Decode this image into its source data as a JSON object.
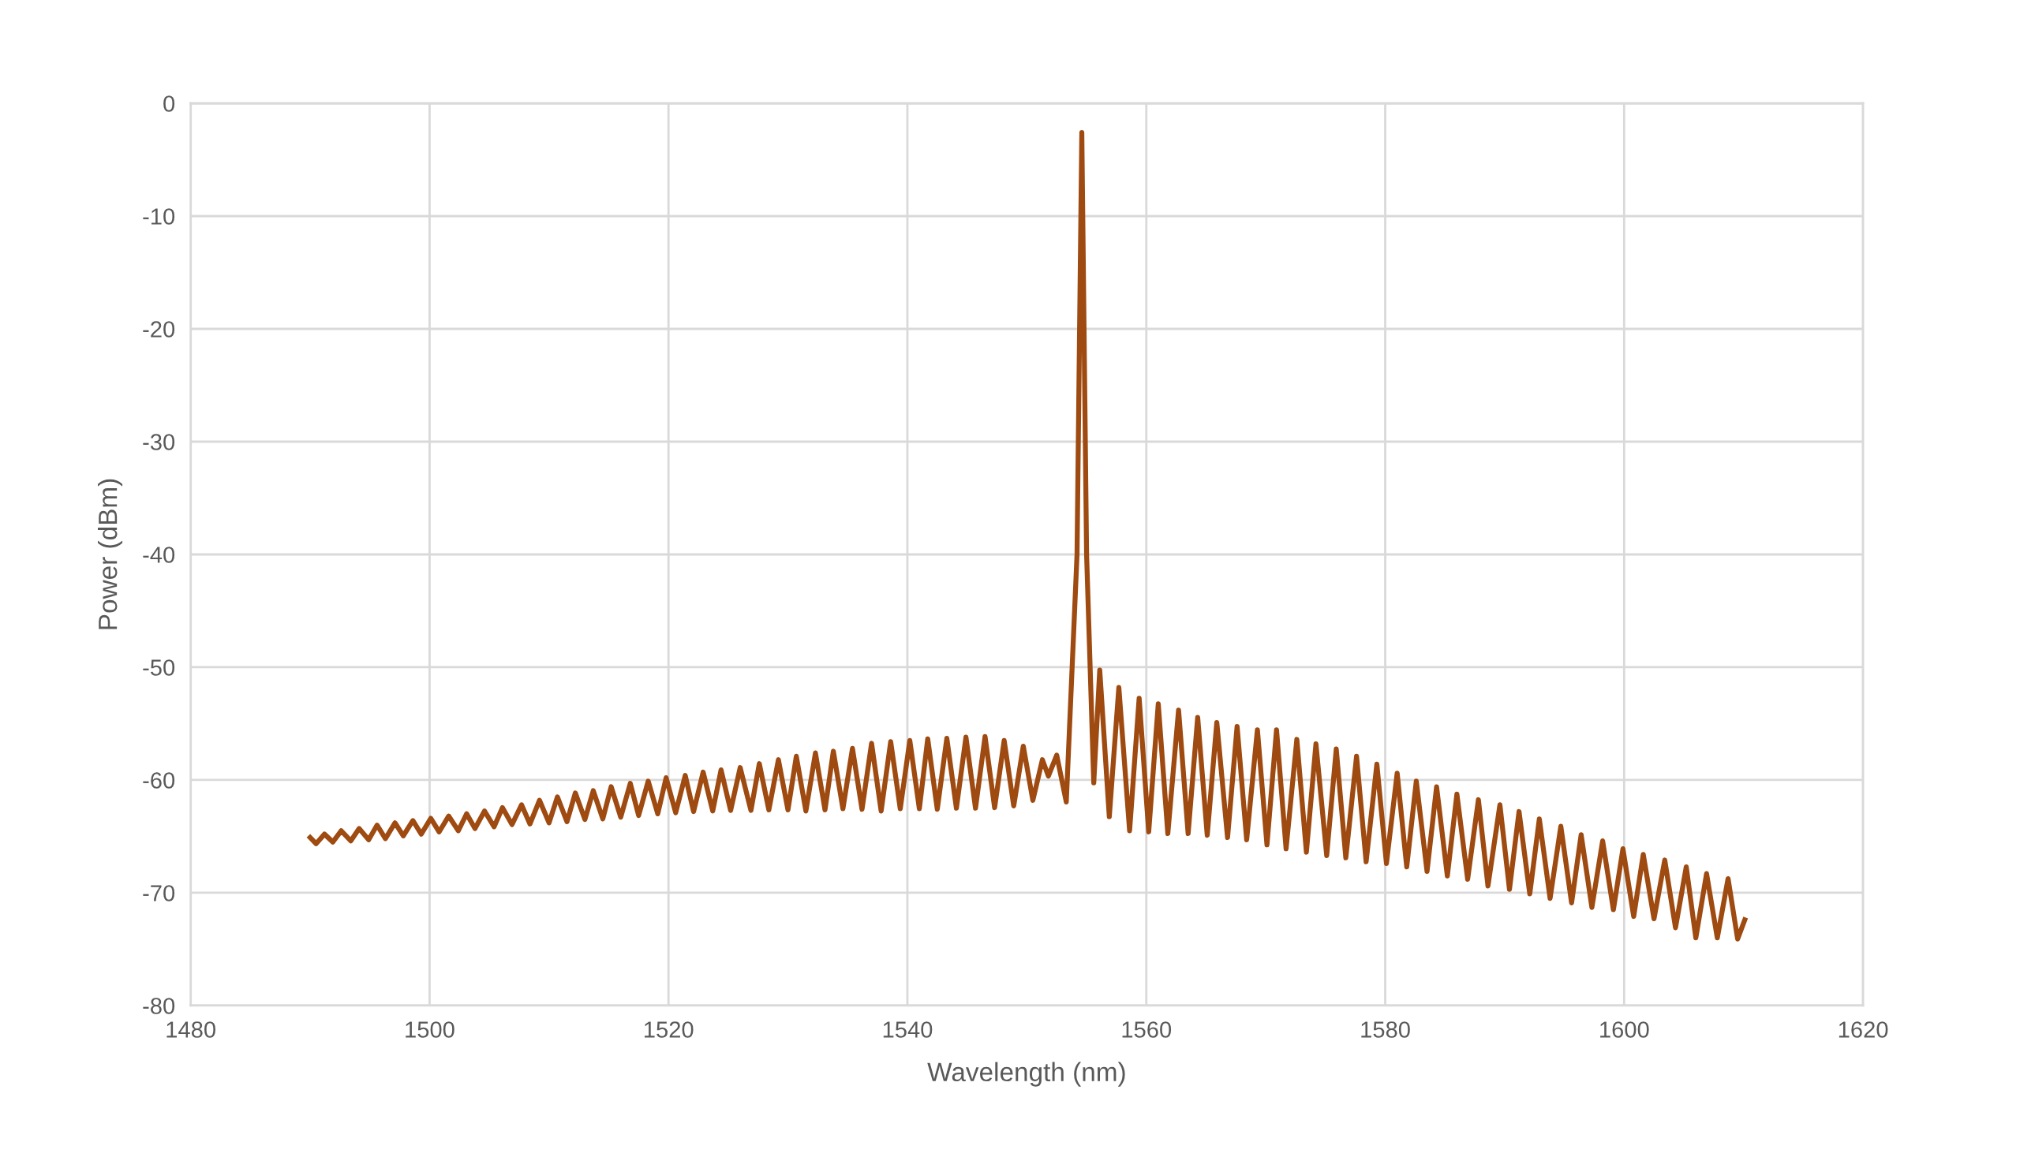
{
  "chart_data": {
    "type": "line",
    "xlabel": "Wavelength (nm)",
    "ylabel": "Power (dBm)",
    "xlim": [
      1480,
      1620
    ],
    "xticks": [
      1480,
      1500,
      1520,
      1540,
      1560,
      1580,
      1600,
      1620
    ],
    "ylim": [
      -80,
      0
    ],
    "yticks": [
      -80,
      -70,
      -60,
      -50,
      -40,
      -30,
      -20,
      -10,
      0
    ],
    "grid": true,
    "legend": false,
    "marker": "none",
    "line_style": "solid",
    "series": [
      {
        "color": "#9e4a10",
        "x": [
          1490.0,
          1490.5,
          1491.2,
          1491.9,
          1492.6,
          1493.4,
          1494.1,
          1494.9,
          1495.6,
          1496.3,
          1497.1,
          1497.8,
          1498.6,
          1499.3,
          1500.1,
          1500.8,
          1501.6,
          1502.4,
          1503.1,
          1503.8,
          1504.6,
          1505.4,
          1506.1,
          1506.9,
          1507.7,
          1508.4,
          1509.2,
          1510.0,
          1510.7,
          1511.5,
          1512.2,
          1513.0,
          1513.7,
          1514.5,
          1515.2,
          1516.0,
          1516.8,
          1517.5,
          1518.3,
          1519.1,
          1519.8,
          1520.6,
          1521.4,
          1522.1,
          1522.9,
          1523.7,
          1524.4,
          1525.2,
          1526.0,
          1526.9,
          1527.6,
          1528.4,
          1529.2,
          1530.0,
          1530.7,
          1531.5,
          1532.3,
          1533.1,
          1533.8,
          1534.6,
          1535.4,
          1536.2,
          1537.0,
          1537.8,
          1538.6,
          1539.4,
          1540.2,
          1541.0,
          1541.7,
          1542.5,
          1543.3,
          1544.1,
          1544.9,
          1545.7,
          1546.5,
          1547.3,
          1548.1,
          1548.9,
          1549.7,
          1550.5,
          1551.3,
          1551.8,
          1552.5,
          1553.3,
          1554.2,
          1554.6,
          1555.0,
          1555.6,
          1556.1,
          1556.9,
          1557.7,
          1558.6,
          1559.4,
          1560.2,
          1561.0,
          1561.8,
          1562.7,
          1563.5,
          1564.3,
          1565.1,
          1565.9,
          1566.8,
          1567.6,
          1568.4,
          1569.3,
          1570.1,
          1570.9,
          1571.7,
          1572.6,
          1573.4,
          1574.2,
          1575.1,
          1575.9,
          1576.7,
          1577.6,
          1578.4,
          1579.3,
          1580.1,
          1581.0,
          1581.8,
          1582.6,
          1583.5,
          1584.3,
          1585.2,
          1586.0,
          1586.9,
          1587.8,
          1588.6,
          1589.6,
          1590.4,
          1591.2,
          1592.1,
          1592.9,
          1593.8,
          1594.7,
          1595.6,
          1596.4,
          1597.3,
          1598.2,
          1599.1,
          1599.9,
          1600.8,
          1601.6,
          1602.5,
          1603.4,
          1604.3,
          1605.2,
          1606.0,
          1606.9,
          1607.8,
          1608.7,
          1609.5,
          1610.1
        ],
        "values": [
          -65.1,
          -65.65,
          -64.8,
          -65.5,
          -64.5,
          -65.4,
          -64.3,
          -65.3,
          -64.0,
          -65.2,
          -63.8,
          -64.95,
          -63.6,
          -64.8,
          -63.4,
          -64.6,
          -63.2,
          -64.5,
          -63.0,
          -64.3,
          -62.75,
          -64.15,
          -62.45,
          -63.95,
          -62.2,
          -63.9,
          -61.8,
          -63.8,
          -61.5,
          -63.7,
          -61.15,
          -63.5,
          -60.95,
          -63.45,
          -60.6,
          -63.3,
          -60.3,
          -63.15,
          -60.1,
          -63.0,
          -59.8,
          -62.9,
          -59.6,
          -62.8,
          -59.3,
          -62.75,
          -59.1,
          -62.7,
          -58.9,
          -62.7,
          -58.55,
          -62.65,
          -58.2,
          -62.65,
          -57.9,
          -62.75,
          -57.6,
          -62.65,
          -57.45,
          -62.55,
          -57.2,
          -62.6,
          -56.75,
          -62.75,
          -56.6,
          -62.55,
          -56.5,
          -62.55,
          -56.35,
          -62.6,
          -56.3,
          -62.5,
          -56.2,
          -62.5,
          -56.15,
          -62.45,
          -56.5,
          -62.3,
          -57.0,
          -61.8,
          -58.2,
          -59.65,
          -57.8,
          -61.95,
          -40,
          -2.6,
          -40,
          -60.25,
          -50.25,
          -63.25,
          -51.8,
          -64.5,
          -52.75,
          -64.6,
          -53.25,
          -64.75,
          -53.8,
          -64.75,
          -54.45,
          -64.9,
          -54.9,
          -65.1,
          -55.25,
          -65.3,
          -55.55,
          -65.75,
          -55.55,
          -66.1,
          -56.4,
          -66.4,
          -56.8,
          -66.7,
          -57.25,
          -66.9,
          -57.9,
          -67.25,
          -58.6,
          -67.4,
          -59.4,
          -67.7,
          -60.1,
          -68.1,
          -60.6,
          -68.5,
          -61.25,
          -68.8,
          -61.75,
          -69.4,
          -62.2,
          -69.7,
          -62.8,
          -70.1,
          -63.45,
          -70.5,
          -64.1,
          -70.9,
          -64.85,
          -71.3,
          -65.4,
          -71.5,
          -66.1,
          -72.1,
          -66.6,
          -72.3,
          -67.1,
          -73.1,
          -67.7,
          -74.0,
          -68.3,
          -74.0,
          -68.75,
          -74.1,
          -72.4
        ]
      }
    ]
  }
}
